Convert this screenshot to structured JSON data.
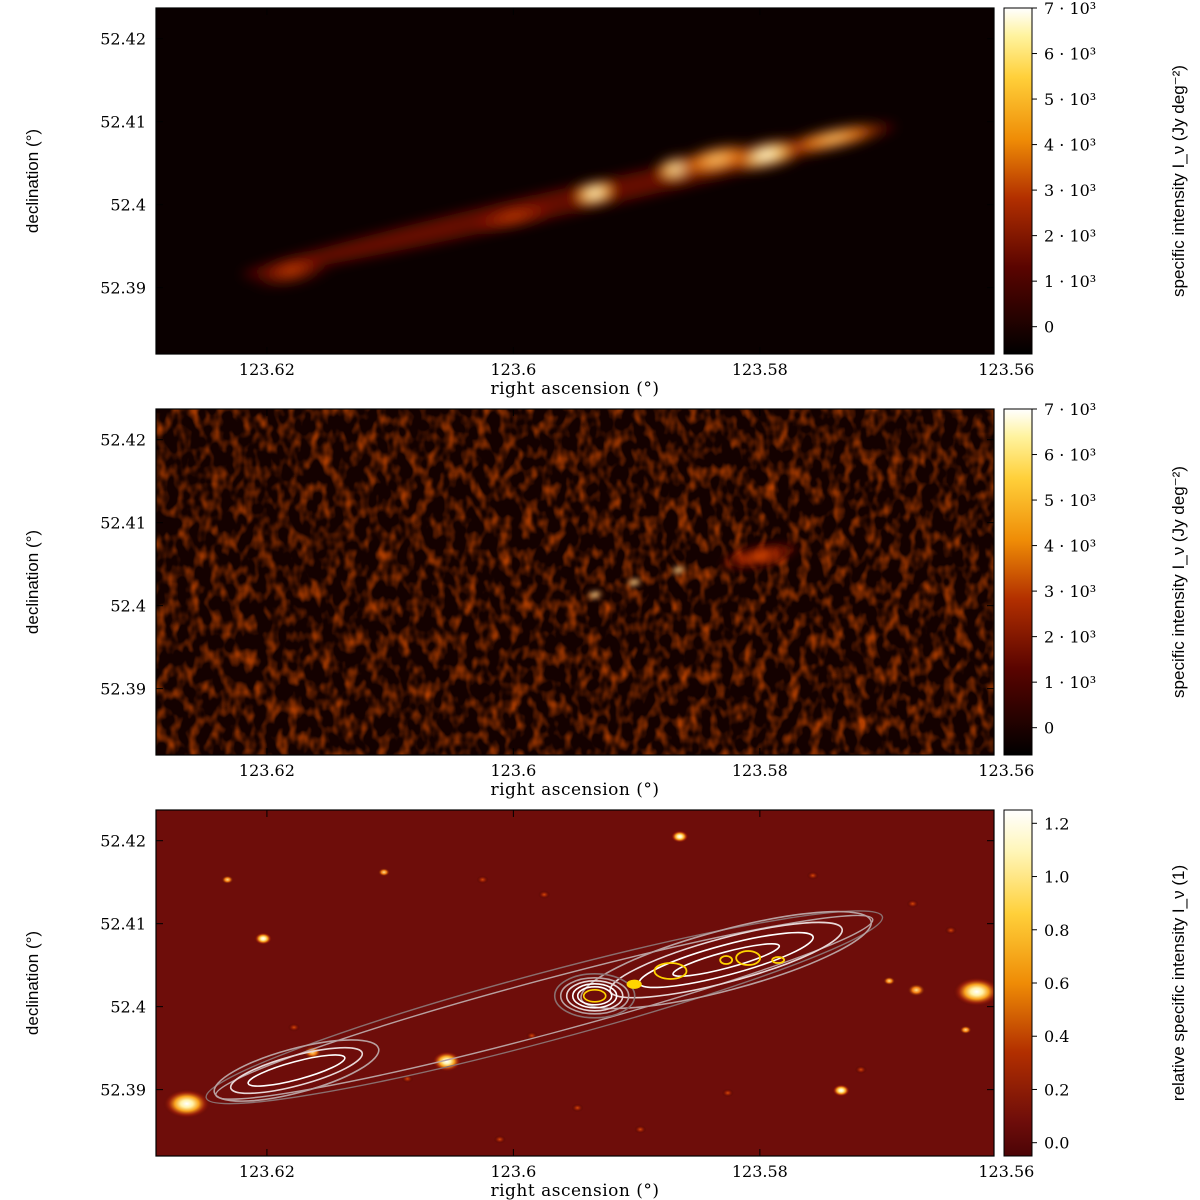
{
  "chart_data": [
    {
      "type": "heatmap",
      "panel": "top",
      "xlabel": "right ascension (°)",
      "ylabel": "declination (°)",
      "x_ticks": [
        123.62,
        123.6,
        123.58,
        123.56
      ],
      "x_tick_labels": [
        "123.62",
        "123.6",
        "123.58",
        "123.56"
      ],
      "y_ticks": [
        52.42,
        52.41,
        52.4,
        52.39
      ],
      "y_tick_labels": [
        "52.42",
        "52.41",
        "52.4",
        "52.39"
      ],
      "xlim": [
        123.629,
        123.561
      ],
      "ylim": [
        52.382,
        52.4237
      ],
      "colorbar": {
        "label": "specific intensity I_ν (Jy deg⁻²)",
        "range": [
          -600,
          7000
        ],
        "ticks": [
          0,
          1000,
          2000,
          3000,
          4000,
          5000,
          6000,
          7000
        ],
        "tick_labels": [
          "0",
          "1 · 10³",
          "2 · 10³",
          "3 · 10³",
          "4 · 10³",
          "5 · 10³",
          "6 · 10³",
          "7 · 10³"
        ]
      },
      "features": [
        {
          "kind": "core",
          "ra": 123.5934,
          "dec": 52.4014,
          "peak": 7000
        },
        {
          "kind": "knot",
          "ra": 123.5867,
          "dec": 52.4044,
          "peak": 6200
        },
        {
          "kind": "lobe",
          "ra": 123.5795,
          "dec": 52.406,
          "peak": 6800
        },
        {
          "kind": "lobe",
          "ra": 123.5835,
          "dec": 52.4055,
          "peak": 4500
        },
        {
          "kind": "jet",
          "ra": 123.6,
          "dec": 52.3985,
          "peak": 1600
        },
        {
          "kind": "lobe",
          "ra": 123.618,
          "dec": 52.392,
          "peak": 2000
        },
        {
          "kind": "jet",
          "ra": 123.574,
          "dec": 52.408,
          "peak": 2600
        }
      ]
    },
    {
      "type": "heatmap",
      "panel": "middle",
      "xlabel": "right ascension (°)",
      "ylabel": "declination (°)",
      "x_ticks": [
        123.62,
        123.6,
        123.58,
        123.56
      ],
      "x_tick_labels": [
        "123.62",
        "123.6",
        "123.58",
        "123.56"
      ],
      "y_ticks": [
        52.42,
        52.41,
        52.4,
        52.39
      ],
      "y_tick_labels": [
        "52.42",
        "52.41",
        "52.4",
        "52.39"
      ],
      "xlim": [
        123.629,
        123.561
      ],
      "ylim": [
        52.382,
        52.4237
      ],
      "colorbar": {
        "label": "specific intensity I_ν (Jy deg⁻²)",
        "range": [
          -600,
          7000
        ],
        "ticks": [
          0,
          1000,
          2000,
          3000,
          4000,
          5000,
          6000,
          7000
        ],
        "tick_labels": [
          "0",
          "1 · 10³",
          "2 · 10³",
          "3 · 10³",
          "4 · 10³",
          "5 · 10³",
          "6 · 10³",
          "7 · 10³"
        ]
      },
      "features": [
        {
          "kind": "core",
          "ra": 123.5934,
          "dec": 52.4013,
          "peak": 4500
        },
        {
          "kind": "knot",
          "ra": 123.5902,
          "dec": 52.4028,
          "peak": 4000
        },
        {
          "kind": "knot",
          "ra": 123.5866,
          "dec": 52.4043,
          "peak": 4200
        },
        {
          "kind": "diffuse",
          "ra": 123.58,
          "dec": 52.406,
          "peak": 1400
        }
      ]
    },
    {
      "type": "heatmap",
      "panel": "bottom",
      "xlabel": "right ascension (°)",
      "ylabel": "declination (°)",
      "x_ticks": [
        123.62,
        123.6,
        123.58,
        123.56
      ],
      "x_tick_labels": [
        "123.62",
        "123.6",
        "123.58",
        "123.56"
      ],
      "y_ticks": [
        52.42,
        52.41,
        52.4,
        52.39
      ],
      "y_tick_labels": [
        "52.42",
        "52.41",
        "52.4",
        "52.39"
      ],
      "xlim": [
        123.629,
        123.561
      ],
      "ylim": [
        52.382,
        52.4237
      ],
      "colorbar": {
        "label": "relative specific intensity I_ν (1)",
        "range": [
          -0.05,
          1.25
        ],
        "ticks": [
          0.0,
          0.2,
          0.4,
          0.6,
          0.8,
          1.0,
          1.2
        ],
        "tick_labels": [
          "0.0",
          "0.2",
          "0.4",
          "0.6",
          "0.8",
          "1.0",
          "1.2"
        ]
      },
      "stars": [
        {
          "ra": 123.6265,
          "dec": 52.3883,
          "peak": 1.2,
          "size": "large"
        },
        {
          "ra": 123.5624,
          "dec": 52.4018,
          "peak": 1.2,
          "size": "large"
        },
        {
          "ra": 123.6054,
          "dec": 52.3934,
          "peak": 1.0,
          "size": "medium"
        },
        {
          "ra": 123.6203,
          "dec": 52.4082,
          "peak": 0.95,
          "size": "small"
        },
        {
          "ra": 123.5734,
          "dec": 52.3899,
          "peak": 0.95,
          "size": "small"
        },
        {
          "ra": 123.5865,
          "dec": 52.4205,
          "peak": 0.9,
          "size": "small"
        },
        {
          "ra": 123.5673,
          "dec": 52.402,
          "peak": 0.7,
          "size": "small"
        },
        {
          "ra": 123.5695,
          "dec": 52.4031,
          "peak": 0.6,
          "size": "small"
        },
        {
          "ra": 123.5633,
          "dec": 52.3972,
          "peak": 0.5,
          "size": "small"
        },
        {
          "ra": 123.6163,
          "dec": 52.3945,
          "peak": 0.7,
          "size": "small"
        },
        {
          "ra": 123.6105,
          "dec": 52.4162,
          "peak": 0.6,
          "size": "small"
        },
        {
          "ra": 123.6232,
          "dec": 52.4153,
          "peak": 0.5,
          "size": "small"
        },
        {
          "ra": 123.5975,
          "dec": 52.4135,
          "peak": 0.4,
          "size": "small"
        },
        {
          "ra": 123.5757,
          "dec": 52.4158,
          "peak": 0.4,
          "size": "small"
        },
        {
          "ra": 123.5645,
          "dec": 52.4092,
          "peak": 0.35,
          "size": "small"
        },
        {
          "ra": 123.6025,
          "dec": 52.4153,
          "peak": 0.35,
          "size": "small"
        },
        {
          "ra": 123.5948,
          "dec": 52.3878,
          "peak": 0.3,
          "size": "small"
        },
        {
          "ra": 123.6011,
          "dec": 52.384,
          "peak": 0.3,
          "size": "small"
        },
        {
          "ra": 123.5826,
          "dec": 52.3896,
          "peak": 0.3,
          "size": "small"
        },
        {
          "ra": 123.5897,
          "dec": 52.3852,
          "peak": 0.3,
          "size": "small"
        },
        {
          "ra": 123.6178,
          "dec": 52.3975,
          "peak": 0.3,
          "size": "small"
        },
        {
          "ra": 123.6086,
          "dec": 52.3913,
          "peak": 0.3,
          "size": "small"
        },
        {
          "ra": 123.5718,
          "dec": 52.3924,
          "peak": 0.3,
          "size": "small"
        },
        {
          "ra": 123.5676,
          "dec": 52.4124,
          "peak": 0.3,
          "size": "small"
        },
        {
          "ra": 123.5985,
          "dec": 52.3965,
          "peak": 0.25,
          "size": "small"
        }
      ],
      "radio_contours": {
        "colors": [
          "#8a6f6f",
          "#b8a0a0",
          "#e8d8d8",
          "#ffffff",
          "#ffd400"
        ],
        "components": [
          {
            "ra": 123.5934,
            "dec": 52.4013
          },
          {
            "ra": 123.5902,
            "dec": 52.4027
          },
          {
            "ra": 123.5866,
            "dec": 52.4043
          },
          {
            "ra": 123.5803,
            "dec": 52.4061
          },
          {
            "ra": 123.6176,
            "dec": 52.3923
          }
        ]
      }
    }
  ]
}
